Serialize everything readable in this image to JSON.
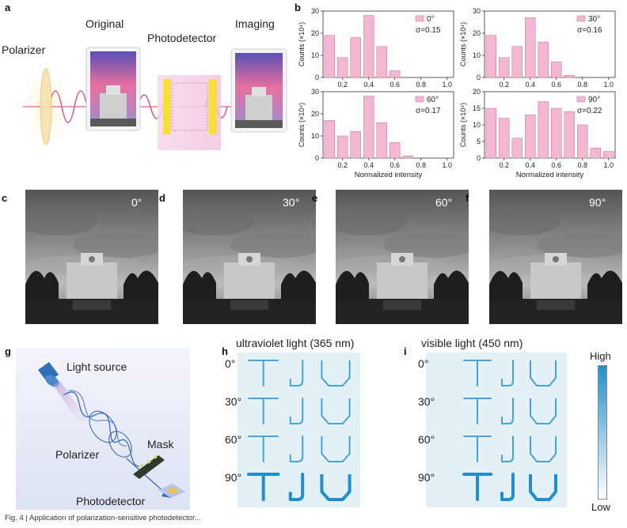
{
  "panel_labels": {
    "a": "a",
    "b": "b",
    "c": "c",
    "d": "d",
    "e": "e",
    "f": "f",
    "g": "g",
    "h": "h",
    "i": "i"
  },
  "panel_a": {
    "polarizer": "Polarizer",
    "original": "Original",
    "photodetector": "Photodetector",
    "imaging": "Imaging"
  },
  "chart_data": [
    {
      "type": "bar",
      "title": "",
      "legend": "0°",
      "sigma": "σ=0.15",
      "ylabel": "Counts (×10⁴)",
      "xlabel": "",
      "x": [
        0.1,
        0.2,
        0.3,
        0.4,
        0.5,
        0.6,
        0.7,
        0.8,
        0.9,
        1.0
      ],
      "values": [
        19,
        9,
        18,
        28,
        14,
        3,
        0,
        0,
        0,
        0
      ],
      "xlim": [
        0.05,
        1.05
      ],
      "ylim": [
        0,
        30
      ],
      "yticks": [
        0,
        10,
        20,
        30
      ],
      "xticks": [
        "0.2",
        "0.4",
        "0.6",
        "0.8",
        "1.0"
      ]
    },
    {
      "type": "bar",
      "title": "",
      "legend": "30°",
      "sigma": "σ=0.16",
      "ylabel": "Counts (×10⁴)",
      "xlabel": "",
      "x": [
        0.1,
        0.2,
        0.3,
        0.4,
        0.5,
        0.6,
        0.7,
        0.8,
        0.9,
        1.0
      ],
      "values": [
        19,
        9,
        14,
        27,
        16,
        7,
        1,
        0,
        0,
        0
      ],
      "xlim": [
        0.05,
        1.05
      ],
      "ylim": [
        0,
        30
      ],
      "yticks": [
        0,
        10,
        20,
        30
      ],
      "xticks": [
        "0.2",
        "0.4",
        "0.6",
        "0.8",
        "1.0"
      ]
    },
    {
      "type": "bar",
      "title": "",
      "legend": "60°",
      "sigma": "σ=0.17",
      "ylabel": "Counts (×10⁴)",
      "xlabel": "Normalized intensity",
      "x": [
        0.1,
        0.2,
        0.3,
        0.4,
        0.5,
        0.6,
        0.7,
        0.8,
        0.9,
        1.0
      ],
      "values": [
        17,
        10,
        12,
        28,
        16,
        7,
        1,
        0,
        0,
        0
      ],
      "xlim": [
        0.05,
        1.05
      ],
      "ylim": [
        0,
        30
      ],
      "yticks": [
        0,
        10,
        20,
        30
      ],
      "xticks": [
        "0.2",
        "0.4",
        "0.6",
        "0.8",
        "1.0"
      ]
    },
    {
      "type": "bar",
      "title": "",
      "legend": "90°",
      "sigma": "σ=0.22",
      "ylabel": "Counts (×10⁴)",
      "xlabel": "Normalized intensity",
      "x": [
        0.1,
        0.2,
        0.3,
        0.4,
        0.5,
        0.6,
        0.7,
        0.8,
        0.9,
        1.0
      ],
      "values": [
        15,
        12,
        6,
        13,
        17,
        15,
        14,
        10,
        3,
        2
      ],
      "xlim": [
        0.05,
        1.05
      ],
      "ylim": [
        0,
        20
      ],
      "yticks": [
        0,
        5,
        10,
        15,
        20
      ],
      "xticks": [
        "0.2",
        "0.4",
        "0.6",
        "0.8",
        "1.0"
      ]
    }
  ],
  "panel_photos": [
    {
      "label": "c",
      "angle": "0°"
    },
    {
      "label": "d",
      "angle": "30°"
    },
    {
      "label": "e",
      "angle": "60°"
    },
    {
      "label": "f",
      "angle": "90°"
    }
  ],
  "panel_g": {
    "light_source": "Light source",
    "polarizer": "Polarizer",
    "mask": "Mask",
    "photodetector": "Photodetector"
  },
  "panel_h": {
    "title": "ultraviolet light (365 nm)"
  },
  "panel_i": {
    "title": "visible light (450 nm)"
  },
  "angles": [
    "0°",
    "30°",
    "60°",
    "90°"
  ],
  "colorbar": {
    "high": "High",
    "low": "Low"
  },
  "caption": "Fig. 4 | Application of polarization-sensitive photodetector...",
  "colors": {
    "bar_fill": "#f2b8d2",
    "bar_stroke": "#d47aa4",
    "pattern": "#1f8fd0",
    "panel_bg": "#e3f0f6",
    "colorbar_top": "#2290cc"
  }
}
